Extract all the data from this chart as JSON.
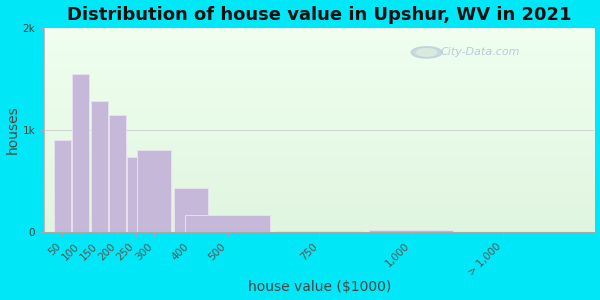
{
  "title": "Distribution of house value in Upshur, WV in 2021",
  "xlabel": "house value ($1000)",
  "ylabel": "houses",
  "bar_color": "#c5b8d8",
  "bar_edge_color": "#e8e0f0",
  "categories": [
    "50",
    "100",
    "150",
    "200",
    "250",
    "300",
    "400",
    "500",
    "750",
    "1,000",
    "> 1,000"
  ],
  "values": [
    900,
    1550,
    1280,
    1150,
    740,
    800,
    430,
    170,
    10,
    25,
    5
  ],
  "ylim": [
    0,
    2000
  ],
  "ytick_labels": [
    "0",
    "1k",
    "2k"
  ],
  "ytick_vals": [
    0,
    1000,
    2000
  ],
  "bg_outer": "#00e8f8",
  "bg_plot_color1": "#f0fff0",
  "bg_plot_color2": "#e0f5e0",
  "watermark": "City-Data.com",
  "title_fontsize": 13,
  "axis_label_fontsize": 10,
  "tick_fontsize": 7.5,
  "bar_positions": [
    50,
    100,
    150,
    200,
    250,
    300,
    400,
    500,
    750,
    1000,
    1250
  ],
  "bar_widths": [
    50,
    50,
    50,
    50,
    50,
    100,
    100,
    250,
    250,
    250,
    250
  ],
  "xlim": [
    0,
    1500
  ],
  "xtick_positions": [
    50,
    100,
    150,
    200,
    250,
    300,
    400,
    500,
    750,
    1000,
    1250
  ],
  "xtick_labels": [
    "50",
    "100",
    "150",
    "200",
    "250",
    "300",
    "400",
    "500",
    "750",
    "1,000",
    "> 1,000"
  ]
}
